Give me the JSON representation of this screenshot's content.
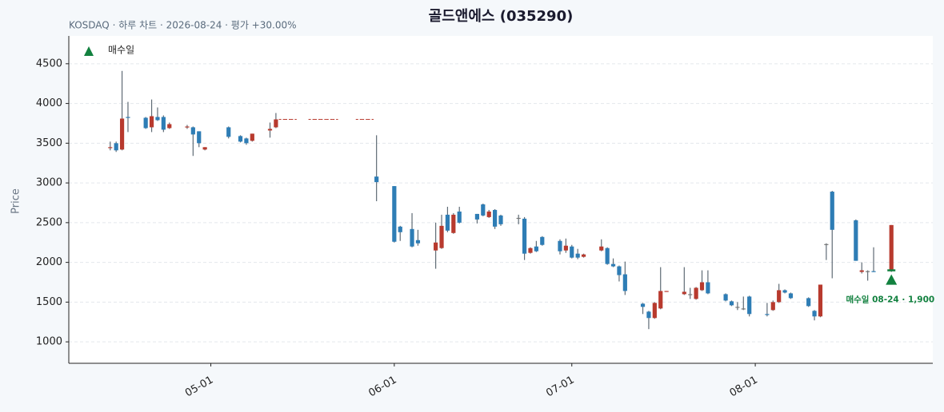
{
  "chart_data": {
    "type": "candlestick",
    "title": "골드앤에스 (035290)",
    "subtitle": "KOSDAQ · 하루 차트 · 2026-08-24 · 평가 +30.00%",
    "y_label": "Price",
    "legend": "매수일",
    "up_color": "#b83a2e",
    "down_color": "#2e7db5",
    "flat_color": "#777777",
    "buy_color": "#12813f",
    "grid": true,
    "xlim": [
      "04-07",
      "08-31"
    ],
    "xticks": [
      "05-01",
      "06-01",
      "07-01",
      "08-01"
    ],
    "ylim": [
      730,
      4850
    ],
    "yticks": [
      1000,
      1500,
      2000,
      2500,
      3000,
      3500,
      4000,
      4500
    ],
    "x": [
      "04-14",
      "04-15",
      "04-16",
      "04-17",
      "04-20",
      "04-21",
      "04-22",
      "04-23",
      "04-24",
      "04-27",
      "04-28",
      "04-29",
      "04-30",
      "05-04",
      "05-06",
      "05-07",
      "05-08",
      "05-11",
      "05-12",
      "05-13",
      "05-14",
      "05-15",
      "05-18",
      "05-19",
      "05-20",
      "05-21",
      "05-22",
      "05-26",
      "05-27",
      "05-28",
      "05-29",
      "06-01",
      "06-02",
      "06-04",
      "06-05",
      "06-08",
      "06-09",
      "06-10",
      "06-11",
      "06-12",
      "06-15",
      "06-16",
      "06-17",
      "06-18",
      "06-19",
      "06-22",
      "06-23",
      "06-24",
      "06-25",
      "06-26",
      "06-29",
      "06-30",
      "07-01",
      "07-02",
      "07-03",
      "07-06",
      "07-07",
      "07-08",
      "07-09",
      "07-10",
      "07-13",
      "07-14",
      "07-15",
      "07-16",
      "07-17",
      "07-20",
      "07-21",
      "07-22",
      "07-23",
      "07-24",
      "07-27",
      "07-28",
      "07-29",
      "07-30",
      "07-31",
      "08-03",
      "08-04",
      "08-05",
      "08-06",
      "08-07",
      "08-10",
      "08-11",
      "08-12",
      "08-13",
      "08-14",
      "08-18",
      "08-19",
      "08-20",
      "08-21",
      "08-24"
    ],
    "open": [
      3440,
      3500,
      3420,
      3830,
      3820,
      3700,
      3830,
      3830,
      3690,
      3700,
      3700,
      3650,
      3420,
      3700,
      3590,
      3560,
      3530,
      3660,
      3700,
      3800,
      3800,
      3800,
      3800,
      3800,
      3800,
      3800,
      3800,
      3800,
      3800,
      3800,
      3080,
      2960,
      2450,
      2420,
      2280,
      2150,
      2180,
      2600,
      2370,
      2640,
      2610,
      2730,
      2570,
      2660,
      2590,
      2560,
      2550,
      2120,
      2200,
      2320,
      2270,
      2150,
      2200,
      2110,
      2070,
      2150,
      2180,
      1980,
      1950,
      1850,
      1480,
      1380,
      1300,
      1420,
      1630,
      1600,
      1600,
      1540,
      1650,
      1750,
      1600,
      1510,
      1440,
      1420,
      1570,
      1350,
      1400,
      1500,
      1650,
      1610,
      1550,
      1390,
      1320,
      2230,
      2890,
      2530,
      1880,
      1890,
      1890,
      1890
    ],
    "high": [
      3520,
      3520,
      4410,
      4020,
      3830,
      4050,
      3950,
      3850,
      3760,
      3730,
      3710,
      3650,
      3450,
      3710,
      3600,
      3570,
      3620,
      3760,
      3880,
      3800,
      3800,
      3800,
      3800,
      3800,
      3800,
      3800,
      3800,
      3800,
      3800,
      3800,
      3600,
      2960,
      2460,
      2620,
      2410,
      2500,
      2600,
      2700,
      2620,
      2700,
      2610,
      2740,
      2660,
      2670,
      2600,
      2600,
      2570,
      2190,
      2270,
      2330,
      2290,
      2300,
      2220,
      2170,
      2110,
      2290,
      2190,
      2050,
      1960,
      2010,
      1490,
      1390,
      1500,
      1940,
      1640,
      1940,
      1680,
      1690,
      1900,
      1900,
      1610,
      1520,
      1500,
      1570,
      1580,
      1490,
      1520,
      1730,
      1660,
      1620,
      1560,
      1400,
      1720,
      2240,
      2900,
      2540,
      2000,
      1900,
      2190,
      2470
    ],
    "low": [
      3410,
      3390,
      3410,
      3640,
      3680,
      3640,
      3780,
      3640,
      3680,
      3680,
      3340,
      3450,
      3410,
      3560,
      3510,
      3480,
      3520,
      3570,
      3690,
      3800,
      3800,
      3800,
      3800,
      3800,
      3800,
      3800,
      3800,
      3800,
      3800,
      3800,
      2770,
      2250,
      2270,
      2190,
      2210,
      1920,
      2170,
      2380,
      2360,
      2490,
      2490,
      2580,
      2560,
      2420,
      2460,
      2480,
      2030,
      2110,
      2130,
      2210,
      2100,
      2120,
      2050,
      2040,
      2060,
      2140,
      1970,
      1940,
      1760,
      1590,
      1350,
      1160,
      1290,
      1410,
      1630,
      1590,
      1540,
      1530,
      1640,
      1600,
      1510,
      1450,
      1400,
      1400,
      1320,
      1320,
      1390,
      1490,
      1610,
      1540,
      1440,
      1270,
      1310,
      2030,
      1800,
      2020,
      1860,
      1770,
      1880,
      1880
    ],
    "close": [
      3450,
      3410,
      3810,
      3820,
      3690,
      3840,
      3790,
      3670,
      3740,
      3710,
      3610,
      3500,
      3450,
      3580,
      3520,
      3500,
      3620,
      3680,
      3800,
      3800,
      3800,
      3800,
      3800,
      3800,
      3800,
      3800,
      3800,
      3800,
      3800,
      3800,
      3010,
      2260,
      2380,
      2200,
      2240,
      2250,
      2460,
      2400,
      2600,
      2500,
      2540,
      2590,
      2640,
      2450,
      2480,
      2560,
      2110,
      2180,
      2140,
      2220,
      2140,
      2210,
      2060,
      2060,
      2100,
      2200,
      1980,
      1950,
      1840,
      1640,
      1440,
      1300,
      1490,
      1640,
      1640,
      1630,
      1600,
      1680,
      1750,
      1610,
      1520,
      1460,
      1440,
      1420,
      1350,
      1340,
      1500,
      1650,
      1620,
      1550,
      1450,
      1320,
      1720,
      2230,
      2410,
      2020,
      1900,
      1890,
      1880,
      2470
    ],
    "buy": {
      "x": "08-24",
      "value": 1900,
      "value_label": "1,900",
      "label": "매수일 08-24"
    }
  }
}
